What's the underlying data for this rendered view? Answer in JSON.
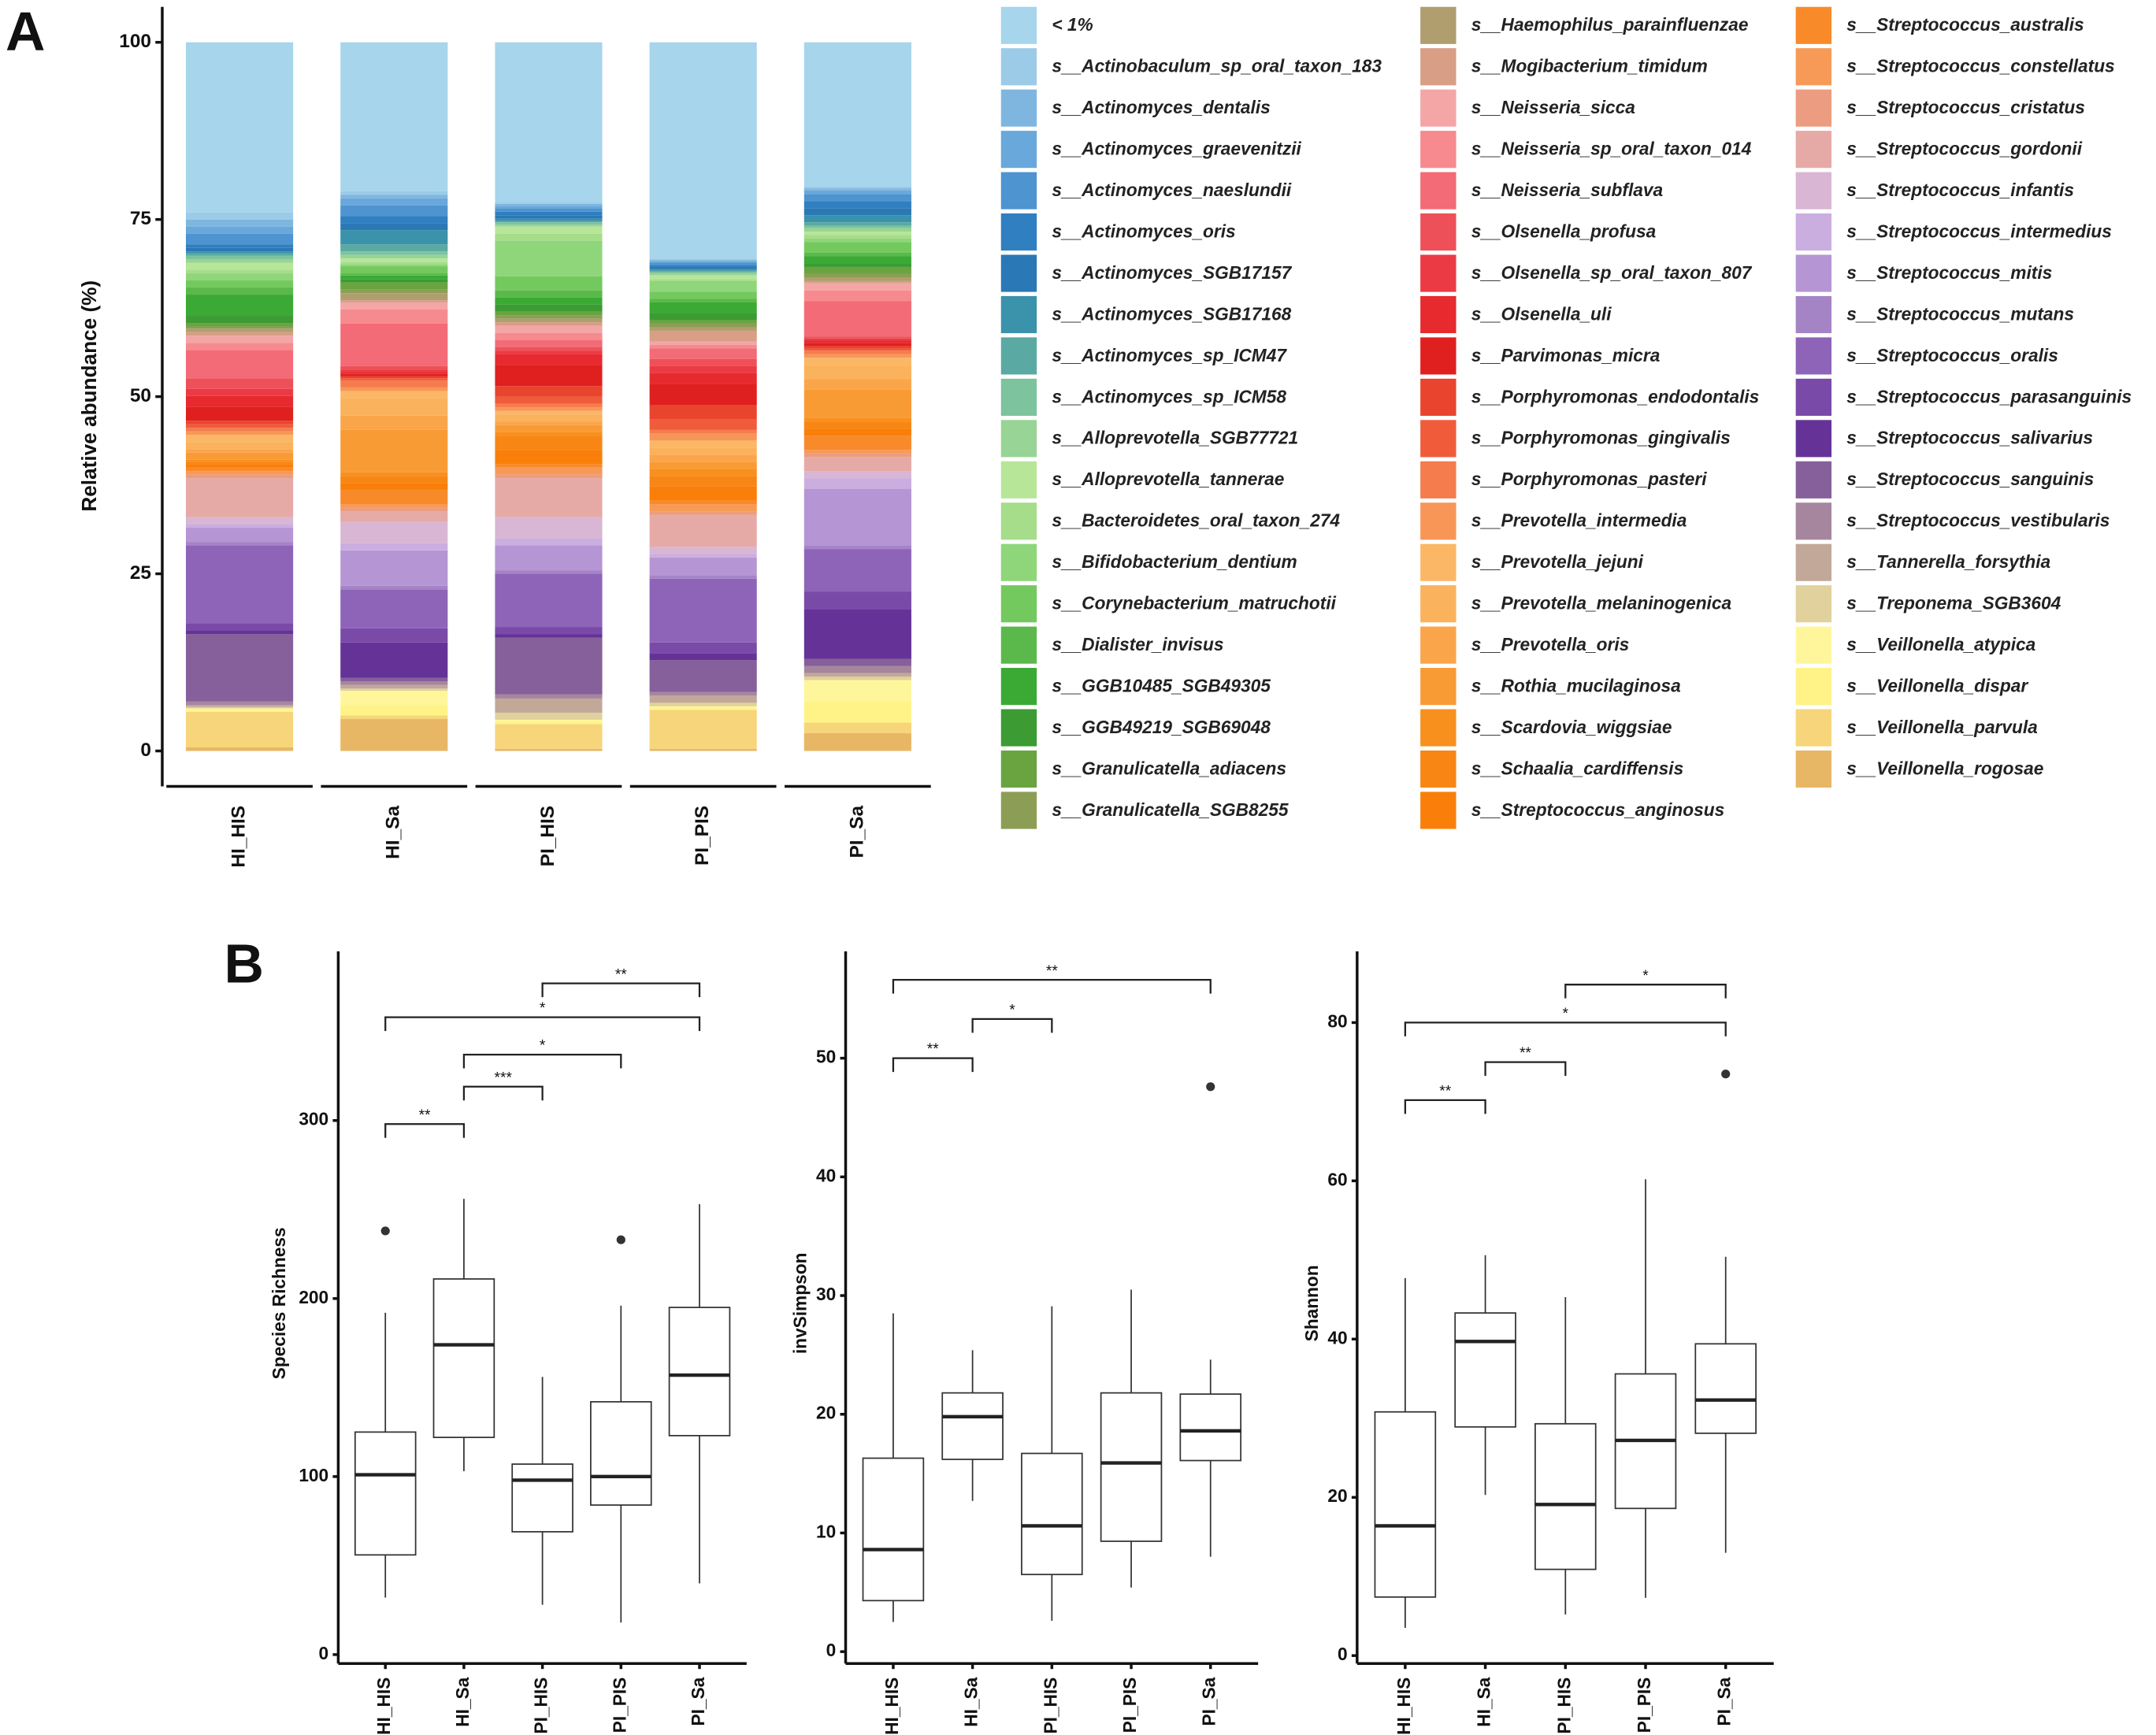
{
  "chart_data": [
    {
      "type": "bar",
      "stacked": true,
      "panel": "A",
      "y_label": "Relative abundance (%)",
      "categories": [
        "HI_HIS",
        "HI_Sa",
        "PI_HIS",
        "PI_PIS",
        "PI_Sa"
      ],
      "ylim": [
        -5,
        105
      ],
      "yticks": [
        0,
        25,
        50,
        75,
        100
      ],
      "series": [
        {
          "name": "< 1%",
          "color": "#a6d5ec",
          "values": [
            24,
            21,
            22.5,
            30.5,
            20.3
          ]
        },
        {
          "name": "s__Actinobaculum_sp_oral_taxon_183",
          "color": "#9ccbe8",
          "values": [
            1,
            0.5,
            0.3,
            0.2,
            0.3
          ]
        },
        {
          "name": "s__Actinomyces_dentalis",
          "color": "#7fb6e0",
          "values": [
            1,
            0.5,
            0.3,
            0.2,
            0.3
          ]
        },
        {
          "name": "s__Actinomyces_graevenitzii",
          "color": "#69a8da",
          "values": [
            1,
            1,
            0.3,
            0.2,
            0.5
          ]
        },
        {
          "name": "s__Actinomyces_naeslundii",
          "color": "#4d94d0",
          "values": [
            1.5,
            1.5,
            0.5,
            0.3,
            1
          ]
        },
        {
          "name": "s__Actinomyces_oris",
          "color": "#2f7fc1",
          "values": [
            0.5,
            1,
            0.5,
            0.3,
            1
          ]
        },
        {
          "name": "s__Actinomyces_SGB17157",
          "color": "#2a78b5",
          "values": [
            0.5,
            1,
            0.5,
            0.3,
            1
          ]
        },
        {
          "name": "s__Actinomyces_SGB17168",
          "color": "#3a92ab",
          "values": [
            0.3,
            2,
            0.3,
            0.2,
            1
          ]
        },
        {
          "name": "s__Actinomyces_sp_ICM47",
          "color": "#5aa9a3",
          "values": [
            0.3,
            1,
            0.2,
            0.2,
            0.5
          ]
        },
        {
          "name": "s__Actinomyces_sp_ICM58",
          "color": "#7dc39d",
          "values": [
            0.5,
            0.5,
            0.3,
            0.2,
            0.3
          ]
        },
        {
          "name": "s__Alloprevotella_SGB77721",
          "color": "#98d495",
          "values": [
            0.5,
            0.5,
            0.3,
            0.3,
            0.5
          ]
        },
        {
          "name": "s__Alloprevotella_tannerae",
          "color": "#b8e699",
          "values": [
            1,
            0.5,
            1,
            0.5,
            0.5
          ]
        },
        {
          "name": "s__Bacteroidetes_oral_taxon_274",
          "color": "#a6dd8a",
          "values": [
            0.5,
            0.3,
            1,
            0.3,
            0.5
          ]
        },
        {
          "name": "s__Bifidobacterium_dentium",
          "color": "#8fd67a",
          "values": [
            1,
            0.3,
            5,
            1.5,
            0.5
          ]
        },
        {
          "name": "s__Corynebacterium_matruchotii",
          "color": "#73c95e",
          "values": [
            1,
            1,
            2,
            1,
            1.5
          ]
        },
        {
          "name": "s__Dialister_invisus",
          "color": "#5ab94a",
          "values": [
            1,
            0.3,
            1,
            0.5,
            0.5
          ]
        },
        {
          "name": "s__GGB10485_SGB49305",
          "color": "#3aaa35",
          "values": [
            3,
            0.5,
            1,
            1.5,
            1
          ]
        },
        {
          "name": "s__GGB49219_SGB69048",
          "color": "#3c9b32",
          "values": [
            1,
            0.5,
            1,
            1,
            0.5
          ]
        },
        {
          "name": "s__Granulicatella_adiacens",
          "color": "#69a441",
          "values": [
            0.5,
            1,
            0.5,
            0.5,
            1
          ]
        },
        {
          "name": "s__Granulicatella_SGB8255",
          "color": "#8c9e55",
          "values": [
            0.3,
            0.5,
            0.5,
            0.5,
            0.5
          ]
        },
        {
          "name": "s__Haemophilus_parainfluenzae",
          "color": "#b09e6e",
          "values": [
            0.5,
            1,
            0.5,
            0.5,
            0.5
          ]
        },
        {
          "name": "s__Mogibacterium_timidum",
          "color": "#d89e86",
          "values": [
            0.5,
            0.3,
            0.5,
            1.5,
            0.3
          ]
        },
        {
          "name": "s__Neisseria_sicca",
          "color": "#f4a6a6",
          "values": [
            1,
            1,
            1,
            0.5,
            1
          ]
        },
        {
          "name": "s__Neisseria_sp_oral_taxon_014",
          "color": "#f68a8f",
          "values": [
            1,
            2,
            1,
            0.5,
            1.5
          ]
        },
        {
          "name": "s__Neisseria_subflava",
          "color": "#f26b76",
          "values": [
            4,
            6,
            1,
            1.5,
            5
          ]
        },
        {
          "name": "s__Olsenella_profusa",
          "color": "#ee5059",
          "values": [
            1.5,
            0.5,
            0.5,
            1,
            0.3
          ]
        },
        {
          "name": "s__Olsenella_sp_oral_taxon_807",
          "color": "#ec3a44",
          "values": [
            1,
            0.3,
            0.5,
            1,
            0.3
          ]
        },
        {
          "name": "s__Olsenella_uli",
          "color": "#e62a2e",
          "values": [
            1.5,
            0.3,
            1.5,
            1.5,
            0.3
          ]
        },
        {
          "name": "s__Parvimonas_micra",
          "color": "#e01f1f",
          "values": [
            2,
            0.3,
            3,
            3,
            0.5
          ]
        },
        {
          "name": "s__Porphyromonas_endodontalis",
          "color": "#e9442e",
          "values": [
            0.5,
            0.3,
            1.5,
            2,
            0.3
          ]
        },
        {
          "name": "s__Porphyromonas_gingivalis",
          "color": "#f05b3a",
          "values": [
            0.5,
            0.3,
            1,
            1.5,
            0.3
          ]
        },
        {
          "name": "s__Porphyromonas_pasteri",
          "color": "#f47c4d",
          "values": [
            0.5,
            1,
            0.5,
            0.5,
            0.5
          ]
        },
        {
          "name": "s__Prevotella_intermedia",
          "color": "#f89658",
          "values": [
            0.5,
            0.5,
            0.5,
            1,
            0.5
          ]
        },
        {
          "name": "s__Prevotella_jejuni",
          "color": "#fbb766",
          "values": [
            1,
            1,
            0.5,
            1,
            1
          ]
        },
        {
          "name": "s__Prevotella_melaninogenica",
          "color": "#fbb25c",
          "values": [
            1,
            2.5,
            1,
            1,
            2
          ]
        },
        {
          "name": "s__Prevotella_oris",
          "color": "#fba54a",
          "values": [
            0.5,
            2,
            0.5,
            1,
            1.5
          ]
        },
        {
          "name": "s__Rothia_mucilaginosa",
          "color": "#f99b35",
          "values": [
            1,
            6,
            1,
            1,
            4
          ]
        },
        {
          "name": "s__Scardovia_wiggsiae",
          "color": "#f8901e",
          "values": [
            0.3,
            0.5,
            0.5,
            1,
            0.5
          ]
        },
        {
          "name": "s__Schaalia_cardiffensis",
          "color": "#f88614",
          "values": [
            0.3,
            1,
            2,
            1.5,
            1
          ]
        },
        {
          "name": "s__Streptococcus_anginosus",
          "color": "#f97f0a",
          "values": [
            0.5,
            1,
            2,
            2,
            1
          ]
        },
        {
          "name": "s__Streptococcus_australis",
          "color": "#f88a2a",
          "values": [
            0.5,
            2,
            0.5,
            0.5,
            2
          ]
        },
        {
          "name": "s__Streptococcus_constellatus",
          "color": "#f79a58",
          "values": [
            0.5,
            0.5,
            1,
            1,
            0.5
          ]
        },
        {
          "name": "s__Streptococcus_cristatus",
          "color": "#ec9c80",
          "values": [
            0.5,
            0.5,
            0.5,
            0.5,
            0.5
          ]
        },
        {
          "name": "s__Streptococcus_gordonii",
          "color": "#e6aaa6",
          "values": [
            5.5,
            1.5,
            5.5,
            4.5,
            2
          ]
        },
        {
          "name": "s__Streptococcus_infantis",
          "color": "#d9b6d4",
          "values": [
            1,
            3,
            3,
            1,
            1
          ]
        },
        {
          "name": "s__Streptococcus_intermedius",
          "color": "#cbaee0",
          "values": [
            0.5,
            1,
            1,
            0.5,
            1.5
          ]
        },
        {
          "name": "s__Streptococcus_mitis",
          "color": "#b595d3",
          "values": [
            2,
            5,
            3.5,
            2.5,
            8
          ]
        },
        {
          "name": "s__Streptococcus_mutans",
          "color": "#a584c6",
          "values": [
            0.5,
            0.5,
            0.5,
            0.5,
            0.5
          ]
        },
        {
          "name": "s__Streptococcus_oralis",
          "color": "#8e64b9",
          "values": [
            11,
            5.5,
            7.5,
            9,
            6
          ]
        },
        {
          "name": "s__Streptococcus_parasanguinis",
          "color": "#7a4aa9",
          "values": [
            1,
            2,
            1,
            1.5,
            2.5
          ]
        },
        {
          "name": "s__Streptococcus_salivarius",
          "color": "#653398",
          "values": [
            0.5,
            5,
            0.5,
            1,
            7
          ]
        },
        {
          "name": "s__Streptococcus_sanguinis",
          "color": "#86609b",
          "values": [
            9.5,
            0.5,
            8,
            4.5,
            1
          ]
        },
        {
          "name": "s__Streptococcus_vestibularis",
          "color": "#a6869e",
          "values": [
            0.5,
            0.5,
            0.6,
            0.5,
            1
          ]
        },
        {
          "name": "s__Tannerella_forsythia",
          "color": "#c2a898",
          "values": [
            0.3,
            0.5,
            2,
            1,
            0.5
          ]
        },
        {
          "name": "s__Treponema_SGB3604",
          "color": "#e1d19c",
          "values": [
            0.2,
            0.3,
            1,
            0.5,
            0.5
          ]
        },
        {
          "name": "s__Veillonella_atypica",
          "color": "#fff69c",
          "values": [
            0.2,
            2,
            0.3,
            0.2,
            3
          ]
        },
        {
          "name": "s__Veillonella_dispar",
          "color": "#fff387",
          "values": [
            0.3,
            1.5,
            0.3,
            0.3,
            3
          ]
        },
        {
          "name": "s__Veillonella_parvula",
          "color": "#f7d57a",
          "values": [
            5,
            0.5,
            3.5,
            5.5,
            1.5
          ]
        },
        {
          "name": "s__Veillonella_rogosae",
          "color": "#e8b766",
          "values": [
            0.5,
            4.5,
            0.3,
            0.3,
            2.5
          ]
        }
      ]
    },
    {
      "type": "box",
      "panel": "B",
      "y_label": "Species Richness",
      "categories": [
        "HI_HIS",
        "HI_Sa",
        "PI_HIS",
        "PI_PIS",
        "PI_Sa"
      ],
      "ylim": [
        -5,
        395
      ],
      "yticks": [
        0,
        100,
        200,
        300
      ],
      "boxes": [
        {
          "whisker_low": 32,
          "q1": 56,
          "median": 101,
          "q3": 125,
          "whisker_high": 192,
          "outliers": [
            238
          ]
        },
        {
          "whisker_low": 103,
          "q1": 122,
          "median": 174,
          "q3": 211,
          "whisker_high": 256,
          "outliers": []
        },
        {
          "whisker_low": 28,
          "q1": 69,
          "median": 98,
          "q3": 107,
          "whisker_high": 156,
          "outliers": []
        },
        {
          "whisker_low": 18,
          "q1": 84,
          "median": 100,
          "q3": 142,
          "whisker_high": 196,
          "outliers": [
            233
          ]
        },
        {
          "whisker_low": 40,
          "q1": 123,
          "median": 157,
          "q3": 195,
          "whisker_high": 253,
          "outliers": []
        }
      ],
      "brackets": [
        {
          "between": [
            "HI_HIS",
            "HI_Sa"
          ],
          "label": "**",
          "y": 298
        },
        {
          "between": [
            "HI_Sa",
            "PI_HIS"
          ],
          "label": "***",
          "y": 319
        },
        {
          "between": [
            "HI_Sa",
            "PI_PIS"
          ],
          "label": "*",
          "y": 337
        },
        {
          "between": [
            "HI_HIS",
            "PI_Sa"
          ],
          "label": "*",
          "y": 358
        },
        {
          "between": [
            "PI_HIS",
            "PI_Sa"
          ],
          "label": "**",
          "y": 377
        }
      ]
    },
    {
      "type": "box",
      "y_label": "invSimpson",
      "categories": [
        "HI_HIS",
        "HI_Sa",
        "PI_HIS",
        "PI_PIS",
        "PI_Sa"
      ],
      "ylim": [
        -1,
        59
      ],
      "yticks": [
        0,
        10,
        20,
        30,
        40,
        50
      ],
      "boxes": [
        {
          "whisker_low": 2.5,
          "q1": 4.3,
          "median": 8.6,
          "q3": 16.3,
          "whisker_high": 28.5,
          "outliers": []
        },
        {
          "whisker_low": 12.7,
          "q1": 16.2,
          "median": 19.8,
          "q3": 21.8,
          "whisker_high": 25.4,
          "outliers": []
        },
        {
          "whisker_low": 2.6,
          "q1": 6.5,
          "median": 10.6,
          "q3": 16.7,
          "whisker_high": 29.1,
          "outliers": []
        },
        {
          "whisker_low": 5.4,
          "q1": 9.3,
          "median": 15.9,
          "q3": 21.8,
          "whisker_high": 30.5,
          "outliers": []
        },
        {
          "whisker_low": 8.0,
          "q1": 16.1,
          "median": 18.6,
          "q3": 21.7,
          "whisker_high": 24.6,
          "outliers": [
            47.6
          ]
        }
      ],
      "brackets": [
        {
          "between": [
            "HI_HIS",
            "HI_Sa"
          ],
          "label": "**",
          "y": 50
        },
        {
          "between": [
            "HI_Sa",
            "PI_HIS"
          ],
          "label": "*",
          "y": 53.3
        },
        {
          "between": [
            "HI_HIS",
            "PI_Sa"
          ],
          "label": "**",
          "y": 56.6
        }
      ]
    },
    {
      "type": "box",
      "y_label": "Shannon",
      "categories": [
        "HI_HIS",
        "HI_Sa",
        "PI_HIS",
        "PI_PIS",
        "PI_Sa"
      ],
      "ylim": [
        -1,
        89
      ],
      "yticks": [
        0,
        20,
        40,
        60,
        80
      ],
      "boxes": [
        {
          "whisker_low": 3.5,
          "q1": 7.4,
          "median": 16.4,
          "q3": 30.8,
          "whisker_high": 47.7,
          "outliers": []
        },
        {
          "whisker_low": 20.3,
          "q1": 28.9,
          "median": 39.7,
          "q3": 43.3,
          "whisker_high": 50.6,
          "outliers": []
        },
        {
          "whisker_low": 5.2,
          "q1": 10.9,
          "median": 19.1,
          "q3": 29.3,
          "whisker_high": 45.3,
          "outliers": []
        },
        {
          "whisker_low": 7.3,
          "q1": 18.6,
          "median": 27.2,
          "q3": 35.6,
          "whisker_high": 60.2,
          "outliers": []
        },
        {
          "whisker_low": 13.0,
          "q1": 28.1,
          "median": 32.3,
          "q3": 39.4,
          "whisker_high": 50.4,
          "outliers": [
            73.5
          ]
        }
      ],
      "brackets": [
        {
          "between": [
            "HI_HIS",
            "HI_Sa"
          ],
          "label": "**",
          "y": 70.2
        },
        {
          "between": [
            "HI_Sa",
            "PI_HIS"
          ],
          "label": "**",
          "y": 75
        },
        {
          "between": [
            "HI_HIS",
            "PI_Sa"
          ],
          "label": "*",
          "y": 80
        },
        {
          "between": [
            "PI_HIS",
            "PI_Sa"
          ],
          "label": "*",
          "y": 84.8
        }
      ]
    }
  ]
}
